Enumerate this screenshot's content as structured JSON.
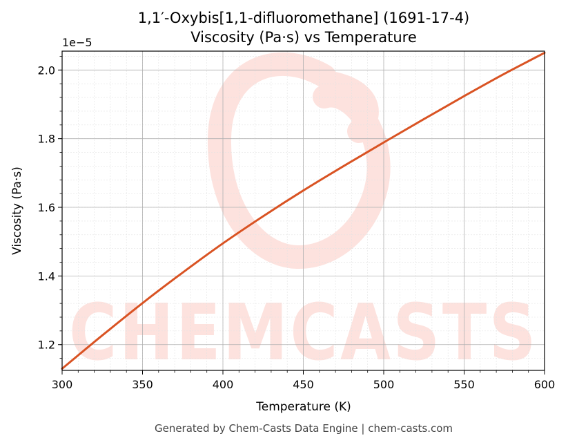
{
  "figure": {
    "title_line1": "1,1′-Oxybis[1,1-difluoromethane] (1691-17-4)",
    "title_line2": "Viscosity (Pa·s) vs Temperature",
    "footer": "Generated by Chem-Casts Data Engine | chem-casts.com",
    "watermark": "CHEMCASTS",
    "offset_label": "1e−5"
  },
  "colors": {
    "line": "#d95323",
    "watermark": "#fde2de",
    "grid_major": "#b0b0b0",
    "grid_minor": "#e2e2e2"
  },
  "chart_data": {
    "type": "line",
    "title": "1,1′-Oxybis[1,1-difluoromethane] (1691-17-4)\nViscosity (Pa·s) vs Temperature",
    "xlabel": "Temperature (K)",
    "ylabel": "Viscosity (Pa·s)",
    "xlim": [
      300,
      600
    ],
    "ylim": [
      1.125e-05,
      2.055e-05
    ],
    "x_ticks": [
      300,
      350,
      400,
      450,
      500,
      550,
      600
    ],
    "y_ticks": [
      1.2e-05,
      1.4e-05,
      1.6e-05,
      1.8e-05,
      2e-05
    ],
    "x_tick_labels": [
      "300",
      "350",
      "400",
      "450",
      "500",
      "550",
      "600"
    ],
    "y_tick_labels": [
      "1.2",
      "1.4",
      "1.6",
      "1.8",
      "2.0"
    ],
    "grid": true,
    "series": [
      {
        "x": [
          300,
          325,
          350,
          375,
          400,
          425,
          450,
          475,
          500,
          525,
          550,
          575,
          600
        ],
        "y": [
          1.13e-05,
          1.227e-05,
          1.321e-05,
          1.41e-05,
          1.495e-05,
          1.574e-05,
          1.649e-05,
          1.72e-05,
          1.789e-05,
          1.857e-05,
          1.924e-05,
          1.989e-05,
          2.05e-05
        ]
      }
    ]
  }
}
